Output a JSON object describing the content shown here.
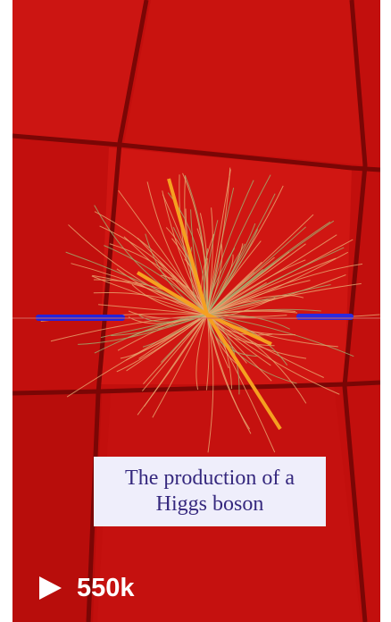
{
  "caption": {
    "lines": [
      "The production of a",
      "Higgs boson"
    ]
  },
  "views": "550k"
}
